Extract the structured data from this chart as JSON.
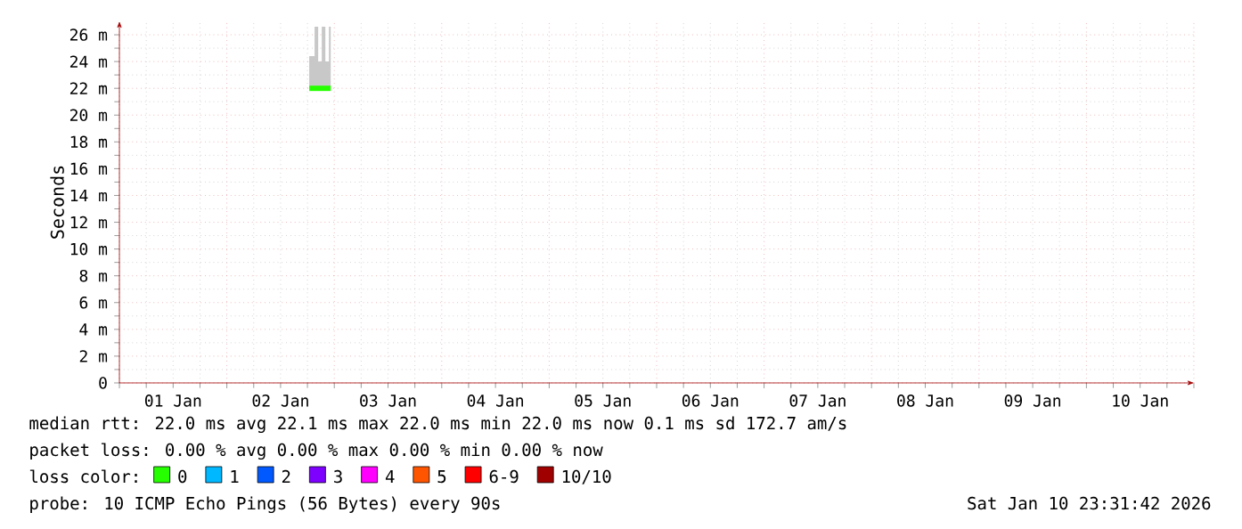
{
  "chart_data": {
    "type": "step",
    "ylabel": "Seconds",
    "legend_title": "loss color:",
    "legend": "bottom",
    "grid": true,
    "x": [
      "2026-01-02T18:24",
      "2026-01-02T19:36",
      "2026-01-02T20:24",
      "2026-01-02T21:12",
      "2026-01-02T22:00",
      "2026-01-02T22:48",
      "2026-01-02T23:12"
    ],
    "series": [
      {
        "name": "0",
        "color": "#26ff00",
        "values": [
          22.0,
          22.0,
          22.0,
          22.0,
          22.0,
          22.0,
          22.0
        ],
        "lower": [
          22.0,
          22.0,
          22.0,
          22.0,
          22.0,
          22.0,
          22.0
        ],
        "upper": [
          24.4,
          26.6,
          24.0,
          26.6,
          24.0,
          26.6,
          26.6
        ]
      },
      {
        "name": "1",
        "color": "#00b8ff",
        "values": [
          null,
          null,
          null,
          null,
          null,
          null,
          null
        ]
      },
      {
        "name": "2",
        "color": "#0059ff",
        "values": [
          null,
          null,
          null,
          null,
          null,
          null,
          null
        ]
      },
      {
        "name": "3",
        "color": "#7e00ff",
        "values": [
          null,
          null,
          null,
          null,
          null,
          null,
          null
        ]
      },
      {
        "name": "4",
        "color": "#ff00ff",
        "values": [
          null,
          null,
          null,
          null,
          null,
          null,
          null
        ]
      },
      {
        "name": "5",
        "color": "#ff5500",
        "values": [
          null,
          null,
          null,
          null,
          null,
          null,
          null
        ]
      },
      {
        "name": "6-9",
        "color": "#ff0000",
        "values": [
          null,
          null,
          null,
          null,
          null,
          null,
          null
        ]
      },
      {
        "name": "10/10",
        "color": "#a10000",
        "values": [
          null,
          null,
          null,
          null,
          null,
          null,
          null
        ]
      }
    ],
    "xlim": [
      "2026-01-01T00:00",
      "2026-01-11T00:00"
    ],
    "xticks": [
      {
        "value": "2026-01-01T12:00",
        "label": "01 Jan"
      },
      {
        "value": "2026-01-02T12:00",
        "label": "02 Jan"
      },
      {
        "value": "2026-01-03T12:00",
        "label": "03 Jan"
      },
      {
        "value": "2026-01-04T12:00",
        "label": "04 Jan"
      },
      {
        "value": "2026-01-05T12:00",
        "label": "05 Jan"
      },
      {
        "value": "2026-01-06T12:00",
        "label": "06 Jan"
      },
      {
        "value": "2026-01-07T12:00",
        "label": "07 Jan"
      },
      {
        "value": "2026-01-08T12:00",
        "label": "08 Jan"
      },
      {
        "value": "2026-01-09T12:00",
        "label": "09 Jan"
      },
      {
        "value": "2026-01-10T12:00",
        "label": "10 Jan"
      }
    ],
    "ylim": [
      0,
      27
    ],
    "yticks": [
      0,
      {
        "value": 2,
        "label": "2 m"
      },
      {
        "value": 4,
        "label": "4 m"
      },
      {
        "value": 6,
        "label": "6 m"
      },
      {
        "value": 8,
        "label": "8 m"
      },
      {
        "value": 10,
        "label": "10 m"
      },
      {
        "value": 12,
        "label": "12 m"
      },
      {
        "value": 14,
        "label": "14 m"
      },
      {
        "value": 16,
        "label": "16 m"
      },
      {
        "value": 18,
        "label": "18 m"
      },
      {
        "value": 20,
        "label": "20 m"
      },
      {
        "value": 22,
        "label": "22 m"
      },
      {
        "value": 24,
        "label": "24 m"
      },
      {
        "value": 26,
        "label": "26 m"
      }
    ],
    "annotations": [
      "median rtt: 22.0 ms avg 22.1 ms max 22.0 ms min 22.0 ms now 0.1 ms sd 172.7 am/s",
      "packet loss: 0.00 % avg 0.00 % max 0.00 % min 0.00 % now",
      "probe: 10 ICMP Echo Pings (56 Bytes) every 90s",
      "Sat Jan 10 23:31:42 2026"
    ]
  }
}
